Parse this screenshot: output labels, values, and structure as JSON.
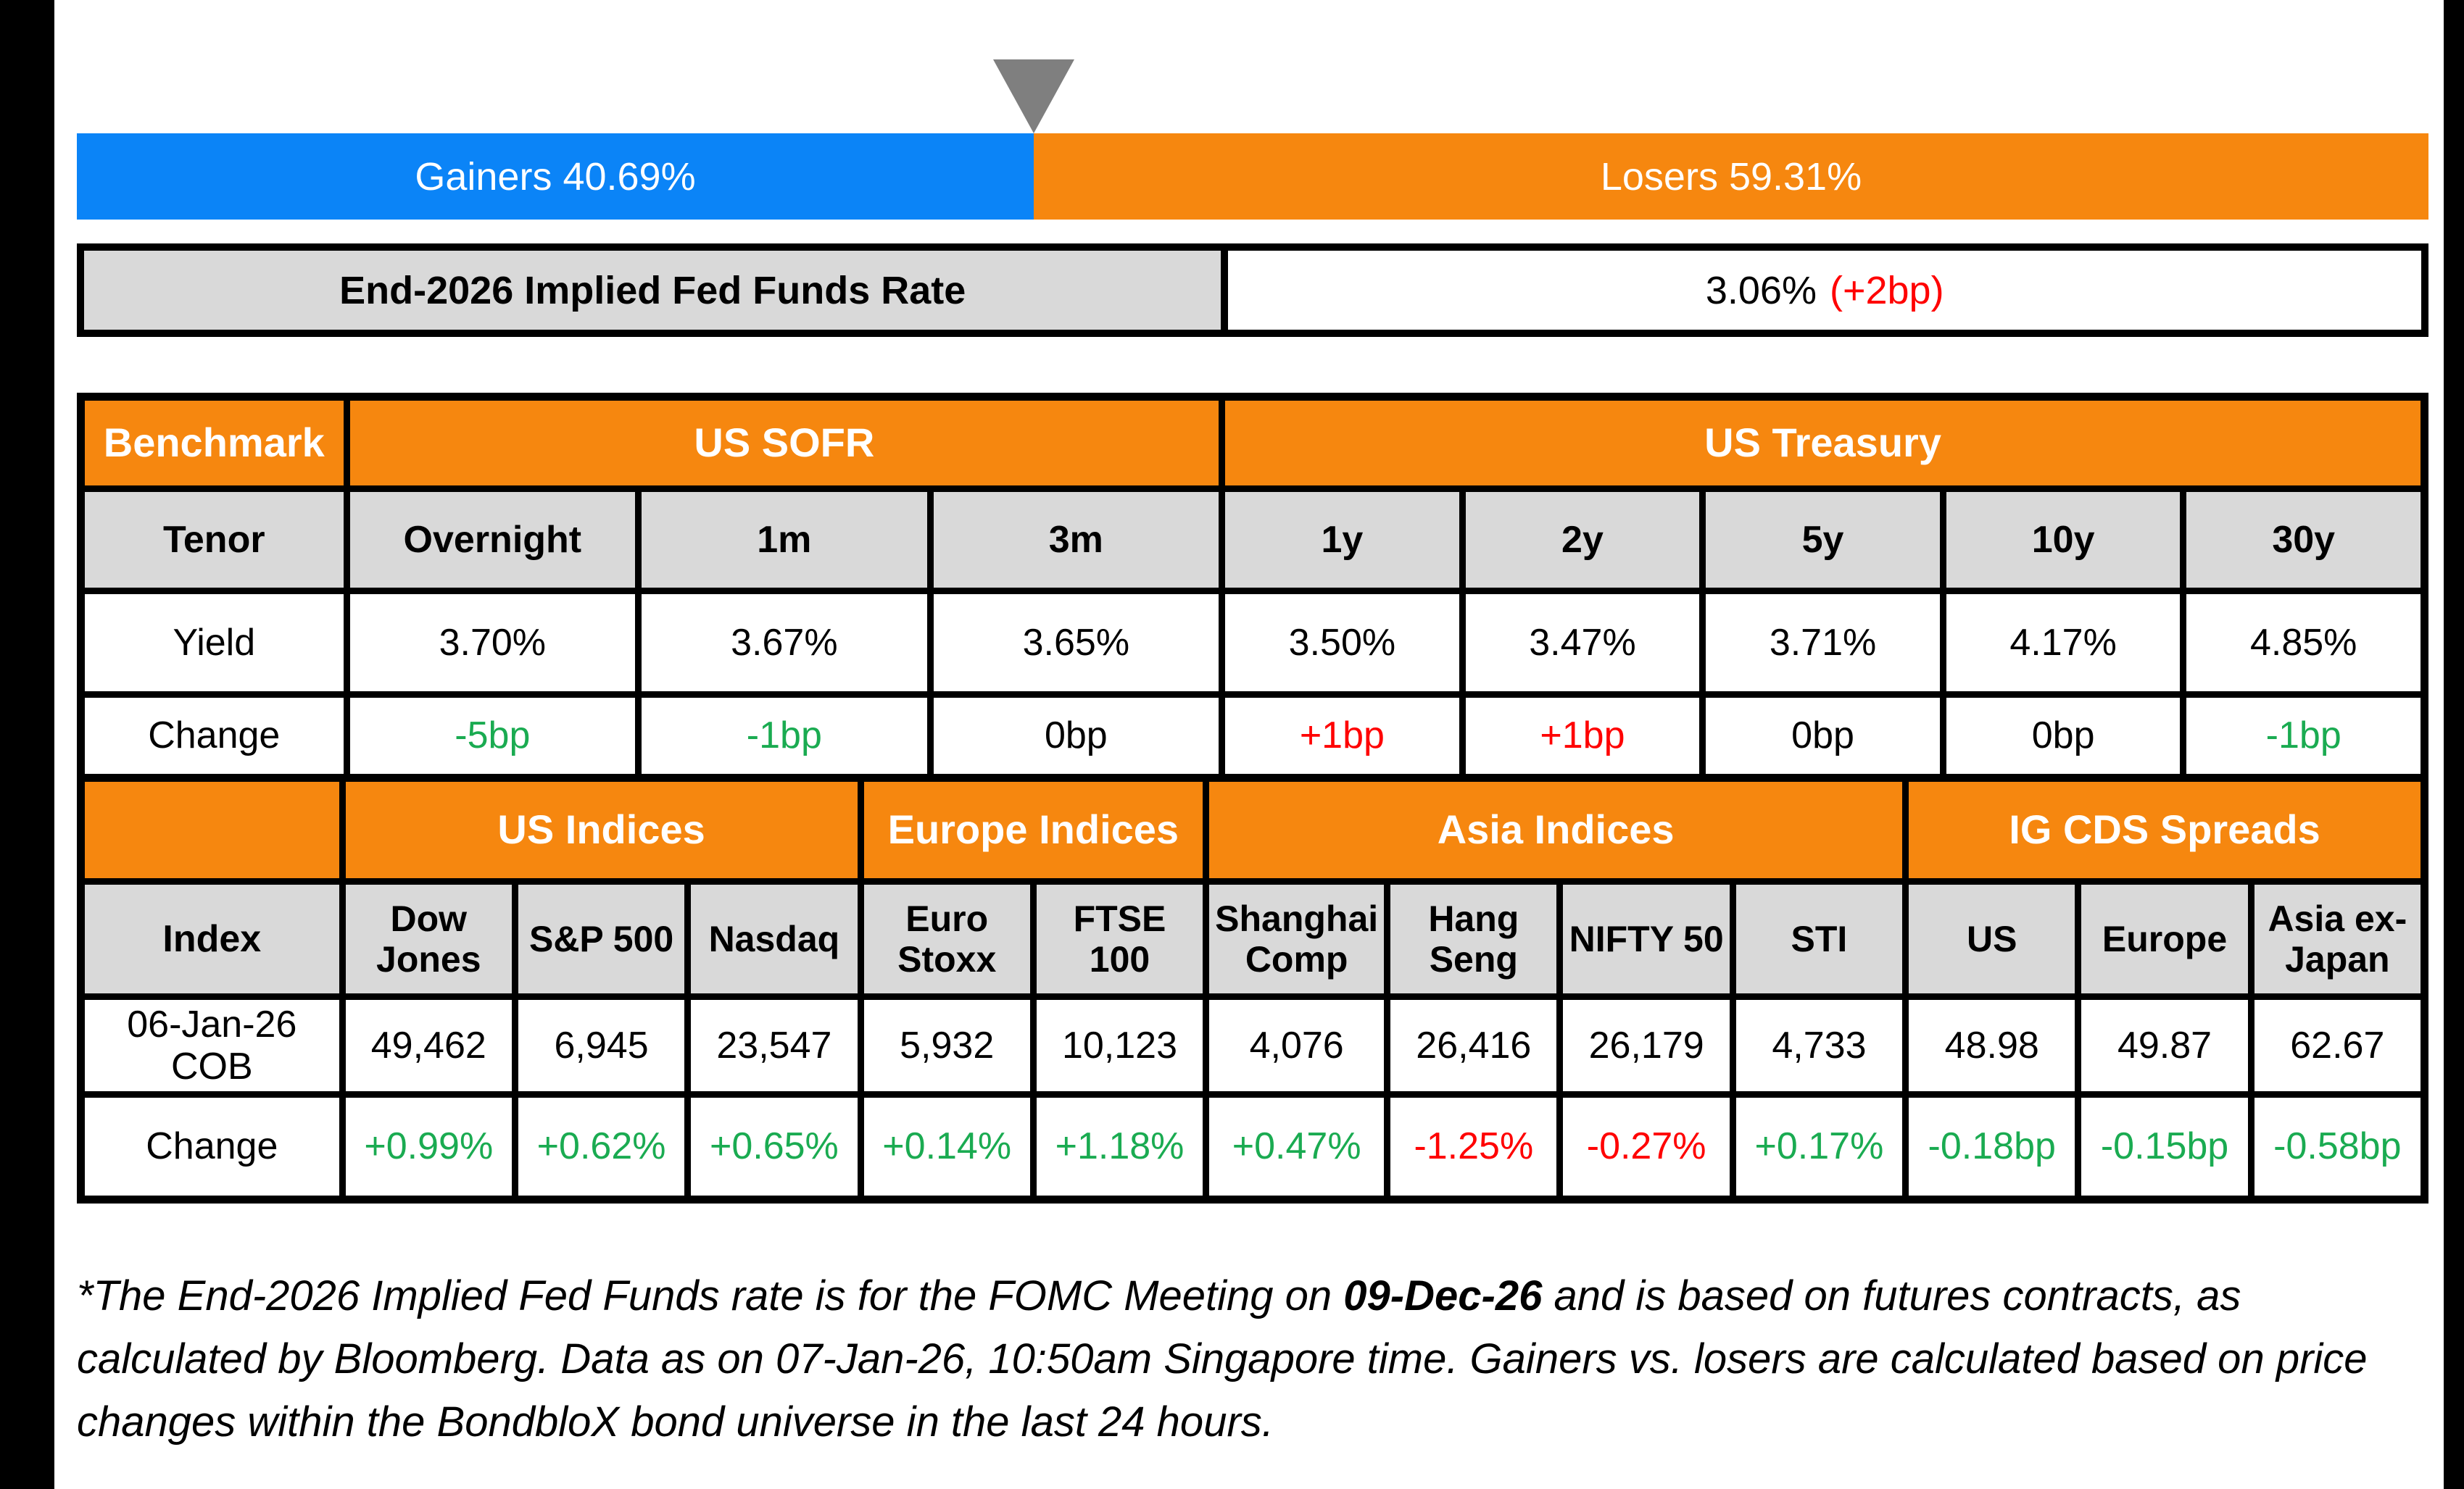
{
  "colors": {
    "blue": "#0B84F7",
    "orange": "#F6870F",
    "gray_cell": "#D9D9D9",
    "marker_gray": "#7F7F7F",
    "green": "#1AAB51",
    "red": "#FF0000",
    "black": "#000000"
  },
  "gainers_losers": {
    "gainers_label": "Gainers 40.69%",
    "losers_label": "Losers 59.31%",
    "gainers_pct": 40.69,
    "losers_pct": 59.31
  },
  "fed_funds": {
    "label": "End-2026 Implied Fed Funds Rate",
    "value": "3.06%",
    "change": "(+2bp)"
  },
  "benchmark": {
    "corner_label": "Benchmark",
    "groups": [
      {
        "label": "US SOFR",
        "span": 3
      },
      {
        "label": "US Treasury",
        "span": 5
      }
    ],
    "tenor_label": "Tenor",
    "yield_label": "Yield",
    "change_label": "Change",
    "columns": [
      {
        "tenor": "Overnight",
        "yield": "3.70%",
        "change": "-5bp",
        "change_color": "green"
      },
      {
        "tenor": "1m",
        "yield": "3.67%",
        "change": "-1bp",
        "change_color": "green"
      },
      {
        "tenor": "3m",
        "yield": "3.65%",
        "change": "0bp",
        "change_color": "black"
      },
      {
        "tenor": "1y",
        "yield": "3.50%",
        "change": "+1bp",
        "change_color": "red"
      },
      {
        "tenor": "2y",
        "yield": "3.47%",
        "change": "+1bp",
        "change_color": "red"
      },
      {
        "tenor": "5y",
        "yield": "3.71%",
        "change": "0bp",
        "change_color": "black"
      },
      {
        "tenor": "10y",
        "yield": "4.17%",
        "change": "0bp",
        "change_color": "black"
      },
      {
        "tenor": "30y",
        "yield": "4.85%",
        "change": "-1bp",
        "change_color": "green"
      }
    ]
  },
  "indices": {
    "corner_label": "",
    "groups": [
      {
        "label": "US Indices",
        "span": 3
      },
      {
        "label": "Europe Indices",
        "span": 2
      },
      {
        "label": "Asia Indices",
        "span": 4
      },
      {
        "label": "IG CDS Spreads",
        "span": 3
      }
    ],
    "index_label": "Index",
    "date_label": "06-Jan-26 COB",
    "change_label": "Change",
    "columns": [
      {
        "name": "Dow\nJones",
        "value": "49,462",
        "change": "+0.99%",
        "change_color": "green"
      },
      {
        "name": "S&P 500",
        "value": "6,945",
        "change": "+0.62%",
        "change_color": "green"
      },
      {
        "name": "Nasdaq",
        "value": "23,547",
        "change": "+0.65%",
        "change_color": "green"
      },
      {
        "name": "Euro\nStoxx",
        "value": "5,932",
        "change": "+0.14%",
        "change_color": "green"
      },
      {
        "name": "FTSE 100",
        "value": "10,123",
        "change": "+1.18%",
        "change_color": "green"
      },
      {
        "name": "Shanghai\nComp",
        "value": "4,076",
        "change": "+0.47%",
        "change_color": "green"
      },
      {
        "name": "Hang\nSeng",
        "value": "26,416",
        "change": "-1.25%",
        "change_color": "red"
      },
      {
        "name": "NIFTY 50",
        "value": "26,179",
        "change": "-0.27%",
        "change_color": "red"
      },
      {
        "name": "STI",
        "value": "4,733",
        "change": "+0.17%",
        "change_color": "green"
      },
      {
        "name": "US",
        "value": "48.98",
        "change": "-0.18bp",
        "change_color": "green"
      },
      {
        "name": "Europe",
        "value": "49.87",
        "change": "-0.15bp",
        "change_color": "green"
      },
      {
        "name": "Asia ex-\nJapan",
        "value": "62.67",
        "change": "-0.58bp",
        "change_color": "green"
      }
    ]
  },
  "footnote": {
    "part1": "*The End-2026 Implied Fed Funds rate is for the FOMC Meeting on ",
    "bold_date": "09-Dec-26",
    "part2": " and is based on futures contracts, as calculated by Bloomberg. Data as on 07-Jan-26, 10:50am Singapore time. Gainers vs. losers are calculated based on price changes within the BondbloX bond universe in the last 24 hours."
  },
  "chart_data": [
    {
      "type": "bar",
      "title": "Gainers vs Losers",
      "categories": [
        "Gainers",
        "Losers"
      ],
      "values": [
        40.69,
        59.31
      ],
      "unit": "%",
      "orientation": "horizontal-stacked",
      "colors": [
        "#0B84F7",
        "#F6870F"
      ],
      "annotations": [
        "Gray marker triangle at 40.69% boundary"
      ]
    },
    {
      "type": "table",
      "title": "Benchmark — US SOFR & US Treasury",
      "columns": [
        "Overnight",
        "1m",
        "3m",
        "1y",
        "2y",
        "5y",
        "10y",
        "30y"
      ],
      "rows": {
        "Yield": [
          "3.70%",
          "3.67%",
          "3.65%",
          "3.50%",
          "3.47%",
          "3.71%",
          "4.17%",
          "4.85%"
        ],
        "Change": [
          "-5bp",
          "-1bp",
          "0bp",
          "+1bp",
          "+1bp",
          "0bp",
          "0bp",
          "-1bp"
        ]
      }
    },
    {
      "type": "table",
      "title": "US / Europe / Asia Indices & IG CDS Spreads",
      "columns": [
        "Dow Jones",
        "S&P 500",
        "Nasdaq",
        "Euro Stoxx",
        "FTSE 100",
        "Shanghai Comp",
        "Hang Seng",
        "NIFTY 50",
        "STI",
        "US",
        "Europe",
        "Asia ex-Japan"
      ],
      "rows": {
        "06-Jan-26 COB": [
          "49,462",
          "6,945",
          "23,547",
          "5,932",
          "10,123",
          "4,076",
          "26,416",
          "26,179",
          "4,733",
          "48.98",
          "49.87",
          "62.67"
        ],
        "Change": [
          "+0.99%",
          "+0.62%",
          "+0.65%",
          "+0.14%",
          "+1.18%",
          "+0.47%",
          "-1.25%",
          "-0.27%",
          "+0.17%",
          "-0.18bp",
          "-0.15bp",
          "-0.58bp"
        ]
      }
    },
    {
      "type": "table",
      "title": "End-2026 Implied Fed Funds Rate",
      "columns": [
        "Value"
      ],
      "rows": {
        "End-2026 Implied Fed Funds Rate": [
          "3.06% (+2bp)"
        ]
      }
    }
  ]
}
